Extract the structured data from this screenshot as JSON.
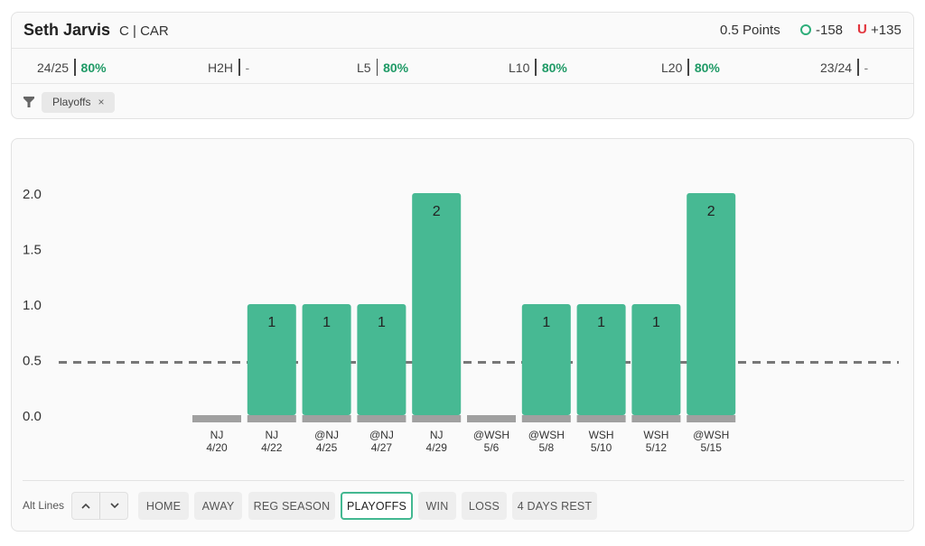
{
  "player": {
    "name": "Seth Jarvis",
    "team": "C | CAR",
    "line": "0.5 Points",
    "over_odds": "-158",
    "under_symbol": "U",
    "under_odds": "+135"
  },
  "stats": [
    {
      "label": "24/25",
      "value": "80%"
    },
    {
      "label": "H2H",
      "value": "-"
    },
    {
      "label": "L5",
      "value": "80%"
    },
    {
      "label": "L10",
      "value": "80%"
    },
    {
      "label": "L20",
      "value": "80%"
    },
    {
      "label": "23/24",
      "value": "-"
    }
  ],
  "active_filter": {
    "label": "Playoffs",
    "remove": "×"
  },
  "chart_data": {
    "type": "bar",
    "categories": [
      "NJ 4/20",
      "NJ 4/22",
      "@NJ 4/25",
      "@NJ 4/27",
      "NJ 4/29",
      "@WSH 5/6",
      "@WSH 5/8",
      "WSH 5/10",
      "WSH 5/12",
      "@WSH 5/15"
    ],
    "opponents": [
      "NJ",
      "NJ",
      "@NJ",
      "@NJ",
      "NJ",
      "@WSH",
      "@WSH",
      "WSH",
      "WSH",
      "@WSH"
    ],
    "dates": [
      "4/20",
      "4/22",
      "4/25",
      "4/27",
      "4/29",
      "5/6",
      "5/8",
      "5/10",
      "5/12",
      "5/15"
    ],
    "values": [
      0,
      1,
      1,
      1,
      2,
      0,
      1,
      1,
      1,
      2
    ],
    "y_ticks": [
      "0.0",
      "0.5",
      "1.0",
      "1.5",
      "2.0"
    ],
    "ylim": [
      0,
      2
    ],
    "threshold": 0.5,
    "colors": {
      "bar": "#47b993",
      "base": "#a0a0a0",
      "threshold": "#777777"
    }
  },
  "alt_lines": {
    "label": "Alt Lines"
  },
  "split_filters": [
    {
      "label": "HOME",
      "active": false
    },
    {
      "label": "AWAY",
      "active": false
    },
    {
      "label": "REG SEASON",
      "active": false
    },
    {
      "label": "PLAYOFFS",
      "active": true
    },
    {
      "label": "WIN",
      "active": false
    },
    {
      "label": "LOSS",
      "active": false
    },
    {
      "label": "4 DAYS REST",
      "active": false
    }
  ]
}
